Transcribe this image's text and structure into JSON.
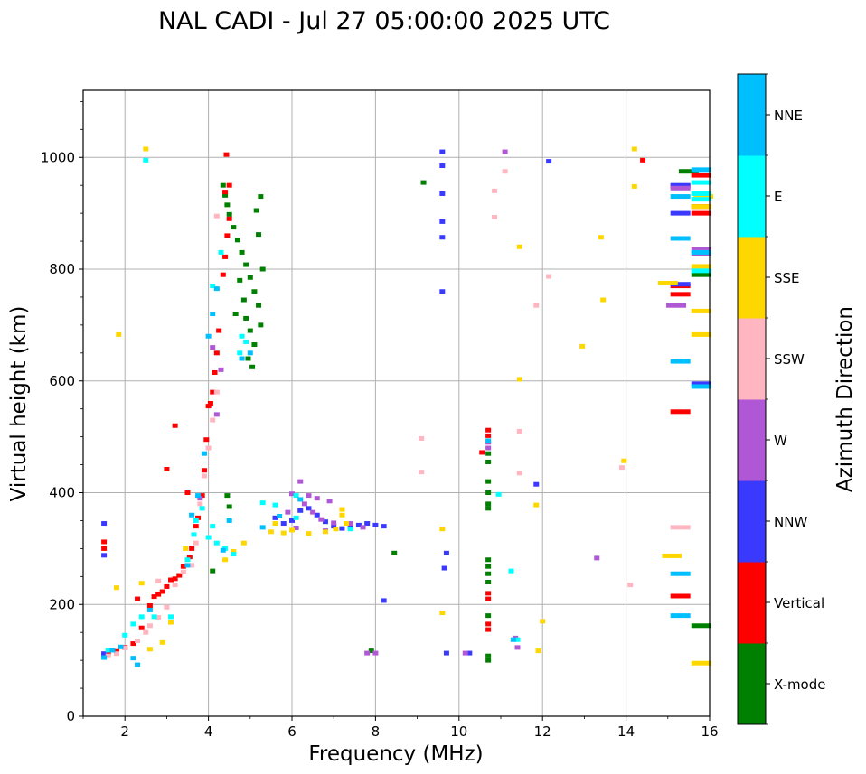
{
  "chart_data": {
    "type": "scatter",
    "title": "NAL CADI - Jul 27 05:00:00 2025 UTC",
    "xlabel": "Frequency (MHz)",
    "ylabel": "Virtual height (km)",
    "xlim": [
      1,
      16
    ],
    "ylim": [
      0,
      1120
    ],
    "x_ticks": [
      2,
      4,
      6,
      8,
      10,
      12,
      14,
      16
    ],
    "y_ticks": [
      0,
      200,
      400,
      600,
      800,
      1000
    ],
    "grid": true,
    "colorbar": {
      "label": "Azimuth Direction",
      "categories": [
        {
          "name": "X-mode",
          "color": "#008000"
        },
        {
          "name": "Vertical",
          "color": "#ff0000"
        },
        {
          "name": "NNW",
          "color": "#3a3aff"
        },
        {
          "name": "W",
          "color": "#b057d6"
        },
        {
          "name": "SSW",
          "color": "#ffb6c1"
        },
        {
          "name": "SSE",
          "color": "#ffd700"
        },
        {
          "name": "E",
          "color": "#00ffff"
        },
        {
          "name": "NNE",
          "color": "#00bfff"
        }
      ]
    },
    "series": [
      {
        "name": "X-mode",
        "points": [
          [
            4.35,
            950
          ],
          [
            4.4,
            932
          ],
          [
            4.45,
            915
          ],
          [
            4.5,
            898
          ],
          [
            4.6,
            875
          ],
          [
            4.7,
            852
          ],
          [
            4.8,
            830
          ],
          [
            4.9,
            808
          ],
          [
            5.0,
            785
          ],
          [
            5.1,
            760
          ],
          [
            5.2,
            735
          ],
          [
            4.9,
            712
          ],
          [
            5.0,
            690
          ],
          [
            5.1,
            665
          ],
          [
            4.95,
            640
          ],
          [
            5.05,
            625
          ],
          [
            5.2,
            862
          ],
          [
            5.15,
            905
          ],
          [
            5.25,
            930
          ],
          [
            4.75,
            780
          ],
          [
            5.3,
            800
          ],
          [
            4.85,
            745
          ],
          [
            5.25,
            700
          ],
          [
            4.65,
            720
          ],
          [
            4.45,
            395
          ],
          [
            4.5,
            375
          ],
          [
            4.1,
            260
          ],
          [
            9.15,
            955
          ],
          [
            8.45,
            292
          ],
          [
            10.7,
            280
          ],
          [
            10.7,
            268
          ],
          [
            10.7,
            255
          ],
          [
            10.7,
            240
          ],
          [
            10.7,
            180
          ],
          [
            10.7,
            108
          ],
          [
            10.7,
            100
          ],
          [
            10.7,
            400
          ],
          [
            10.7,
            380
          ],
          [
            10.7,
            372
          ],
          [
            10.7,
            420
          ],
          [
            10.7,
            455
          ],
          [
            10.7,
            470
          ],
          [
            7.9,
            117
          ],
          [
            15.5,
            975
          ],
          [
            15.8,
            162
          ],
          [
            15.8,
            790
          ],
          [
            15.8,
            968
          ]
        ]
      },
      {
        "name": "Vertical",
        "points": [
          [
            1.5,
            110
          ],
          [
            1.6,
            113
          ],
          [
            1.8,
            116
          ],
          [
            2.0,
            123
          ],
          [
            2.2,
            130
          ],
          [
            2.4,
            158
          ],
          [
            2.6,
            198
          ],
          [
            2.7,
            214
          ],
          [
            2.8,
            218
          ],
          [
            2.9,
            223
          ],
          [
            3.0,
            232
          ],
          [
            3.1,
            244
          ],
          [
            3.2,
            246
          ],
          [
            3.3,
            252
          ],
          [
            3.4,
            268
          ],
          [
            3.55,
            285
          ],
          [
            3.6,
            300
          ],
          [
            3.7,
            340
          ],
          [
            3.75,
            355
          ],
          [
            3.85,
            395
          ],
          [
            3.9,
            440
          ],
          [
            3.95,
            495
          ],
          [
            4.0,
            555
          ],
          [
            4.05,
            560
          ],
          [
            4.1,
            580
          ],
          [
            4.15,
            615
          ],
          [
            4.2,
            650
          ],
          [
            4.25,
            690
          ],
          [
            4.35,
            790
          ],
          [
            4.4,
            822
          ],
          [
            4.45,
            860
          ],
          [
            4.5,
            890
          ],
          [
            4.4,
            938
          ],
          [
            4.5,
            950
          ],
          [
            4.43,
            1005
          ],
          [
            3.5,
            400
          ],
          [
            3.0,
            442
          ],
          [
            3.2,
            520
          ],
          [
            2.3,
            210
          ],
          [
            1.5,
            312
          ],
          [
            1.5,
            300
          ],
          [
            10.7,
            512
          ],
          [
            10.7,
            502
          ],
          [
            10.7,
            220
          ],
          [
            10.7,
            210
          ],
          [
            10.7,
            165
          ],
          [
            10.7,
            155
          ],
          [
            10.55,
            472
          ],
          [
            14.4,
            995
          ],
          [
            15.3,
            755
          ],
          [
            15.3,
            545
          ],
          [
            15.3,
            215
          ],
          [
            15.8,
            900
          ],
          [
            15.8,
            912
          ],
          [
            15.8,
            968
          ],
          [
            15.3,
            948
          ],
          [
            15.3,
            770
          ]
        ]
      },
      {
        "name": "NNW",
        "points": [
          [
            1.5,
            345
          ],
          [
            1.5,
            288
          ],
          [
            1.5,
            112
          ],
          [
            5.6,
            355
          ],
          [
            5.8,
            345
          ],
          [
            6.0,
            350
          ],
          [
            6.2,
            368
          ],
          [
            6.4,
            372
          ],
          [
            6.6,
            360
          ],
          [
            6.8,
            348
          ],
          [
            7.0,
            340
          ],
          [
            7.2,
            336
          ],
          [
            7.4,
            338
          ],
          [
            7.6,
            342
          ],
          [
            7.8,
            345
          ],
          [
            8.0,
            342
          ],
          [
            8.2,
            340
          ],
          [
            8.2,
            207
          ],
          [
            9.6,
            1010
          ],
          [
            9.6,
            985
          ],
          [
            9.6,
            935
          ],
          [
            9.6,
            885
          ],
          [
            9.6,
            857
          ],
          [
            9.6,
            760
          ],
          [
            9.7,
            292
          ],
          [
            9.65,
            265
          ],
          [
            9.7,
            113
          ],
          [
            10.25,
            113
          ],
          [
            11.35,
            138
          ],
          [
            11.85,
            415
          ],
          [
            12.15,
            993
          ],
          [
            15.3,
            950
          ],
          [
            15.3,
            900
          ],
          [
            15.8,
            595
          ],
          [
            15.3,
            773
          ]
        ]
      },
      {
        "name": "W",
        "points": [
          [
            6.2,
            420
          ],
          [
            6.0,
            398
          ],
          [
            6.4,
            395
          ],
          [
            6.6,
            390
          ],
          [
            6.9,
            385
          ],
          [
            6.3,
            380
          ],
          [
            6.5,
            365
          ],
          [
            6.7,
            352
          ],
          [
            7.0,
            346
          ],
          [
            7.4,
            345
          ],
          [
            7.7,
            338
          ],
          [
            5.9,
            365
          ],
          [
            6.1,
            337
          ],
          [
            6.8,
            332
          ],
          [
            7.8,
            113
          ],
          [
            8.0,
            113
          ],
          [
            10.15,
            113
          ],
          [
            10.7,
            490
          ],
          [
            10.7,
            480
          ],
          [
            11.1,
            1010
          ],
          [
            11.4,
            123
          ],
          [
            11.35,
            140
          ],
          [
            13.3,
            283
          ],
          [
            15.2,
            735
          ],
          [
            15.8,
            835
          ],
          [
            15.8,
            828
          ],
          [
            15.3,
            945
          ],
          [
            4.1,
            660
          ],
          [
            4.3,
            620
          ],
          [
            4.2,
            540
          ],
          [
            3.8,
            390
          ]
        ]
      },
      {
        "name": "SSW",
        "points": [
          [
            1.6,
            108
          ],
          [
            1.8,
            112
          ],
          [
            2.0,
            122
          ],
          [
            2.3,
            135
          ],
          [
            2.5,
            150
          ],
          [
            2.6,
            162
          ],
          [
            2.8,
            177
          ],
          [
            3.0,
            195
          ],
          [
            3.2,
            235
          ],
          [
            3.4,
            258
          ],
          [
            3.6,
            270
          ],
          [
            3.7,
            310
          ],
          [
            3.8,
            380
          ],
          [
            3.9,
            430
          ],
          [
            4.0,
            480
          ],
          [
            4.1,
            530
          ],
          [
            4.2,
            580
          ],
          [
            4.2,
            895
          ],
          [
            2.8,
            242
          ],
          [
            9.1,
            497
          ],
          [
            9.1,
            437
          ],
          [
            10.85,
            893
          ],
          [
            10.85,
            940
          ],
          [
            11.1,
            975
          ],
          [
            11.45,
            510
          ],
          [
            11.45,
            435
          ],
          [
            12.15,
            787
          ],
          [
            11.85,
            735
          ],
          [
            13.9,
            445
          ],
          [
            14.1,
            235
          ],
          [
            15.3,
            338
          ]
        ]
      },
      {
        "name": "SSE",
        "points": [
          [
            1.8,
            230
          ],
          [
            1.85,
            683
          ],
          [
            2.5,
            1015
          ],
          [
            2.4,
            238
          ],
          [
            2.6,
            120
          ],
          [
            2.9,
            132
          ],
          [
            3.1,
            168
          ],
          [
            3.45,
            300
          ],
          [
            4.4,
            280
          ],
          [
            4.6,
            295
          ],
          [
            4.85,
            310
          ],
          [
            5.5,
            330
          ],
          [
            5.6,
            345
          ],
          [
            5.8,
            328
          ],
          [
            6.0,
            333
          ],
          [
            6.4,
            327
          ],
          [
            6.8,
            330
          ],
          [
            7.05,
            335
          ],
          [
            7.2,
            370
          ],
          [
            7.2,
            360
          ],
          [
            7.3,
            345
          ],
          [
            9.6,
            335
          ],
          [
            9.6,
            185
          ],
          [
            11.45,
            840
          ],
          [
            11.45,
            603
          ],
          [
            11.85,
            378
          ],
          [
            11.9,
            117
          ],
          [
            12.0,
            170
          ],
          [
            12.95,
            662
          ],
          [
            13.4,
            857
          ],
          [
            13.45,
            745
          ],
          [
            13.95,
            457
          ],
          [
            14.2,
            1015
          ],
          [
            14.2,
            948
          ],
          [
            15.0,
            775
          ],
          [
            15.1,
            287
          ],
          [
            15.8,
            805
          ],
          [
            15.8,
            725
          ],
          [
            15.8,
            683
          ],
          [
            15.8,
            95
          ],
          [
            15.85,
            930
          ],
          [
            15.8,
            912
          ]
        ]
      },
      {
        "name": "E",
        "points": [
          [
            2.5,
            995
          ],
          [
            1.6,
            118
          ],
          [
            2.0,
            145
          ],
          [
            2.2,
            165
          ],
          [
            2.4,
            178
          ],
          [
            2.7,
            178
          ],
          [
            3.1,
            178
          ],
          [
            3.5,
            280
          ],
          [
            3.65,
            325
          ],
          [
            3.7,
            350
          ],
          [
            3.85,
            372
          ],
          [
            4.0,
            320
          ],
          [
            4.1,
            340
          ],
          [
            4.2,
            310
          ],
          [
            4.4,
            300
          ],
          [
            4.1,
            770
          ],
          [
            4.3,
            830
          ],
          [
            4.9,
            670
          ],
          [
            4.75,
            650
          ],
          [
            4.8,
            680
          ],
          [
            5.3,
            382
          ],
          [
            5.6,
            378
          ],
          [
            6.1,
            395
          ],
          [
            6.1,
            355
          ],
          [
            7.4,
            335
          ],
          [
            10.95,
            397
          ],
          [
            11.25,
            260
          ],
          [
            11.4,
            137
          ],
          [
            15.8,
            935
          ],
          [
            15.8,
            925
          ],
          [
            15.8,
            955
          ],
          [
            15.8,
            797
          ],
          [
            4.6,
            290
          ]
        ]
      },
      {
        "name": "NNE",
        "points": [
          [
            1.5,
            105
          ],
          [
            1.7,
            118
          ],
          [
            1.9,
            124
          ],
          [
            2.2,
            104
          ],
          [
            2.3,
            92
          ],
          [
            2.6,
            190
          ],
          [
            3.5,
            270
          ],
          [
            3.6,
            360
          ],
          [
            3.75,
            395
          ],
          [
            3.9,
            470
          ],
          [
            4.0,
            680
          ],
          [
            4.1,
            720
          ],
          [
            4.2,
            765
          ],
          [
            4.35,
            297
          ],
          [
            4.5,
            350
          ],
          [
            4.8,
            640
          ],
          [
            5.0,
            650
          ],
          [
            5.3,
            338
          ],
          [
            5.7,
            358
          ],
          [
            6.2,
            388
          ],
          [
            10.7,
            493
          ],
          [
            11.3,
            137
          ],
          [
            15.3,
            930
          ],
          [
            15.3,
            855
          ],
          [
            15.3,
            635
          ],
          [
            15.3,
            255
          ],
          [
            15.3,
            180
          ],
          [
            15.8,
            978
          ],
          [
            15.8,
            590
          ],
          [
            15.8,
            830
          ]
        ]
      }
    ]
  }
}
